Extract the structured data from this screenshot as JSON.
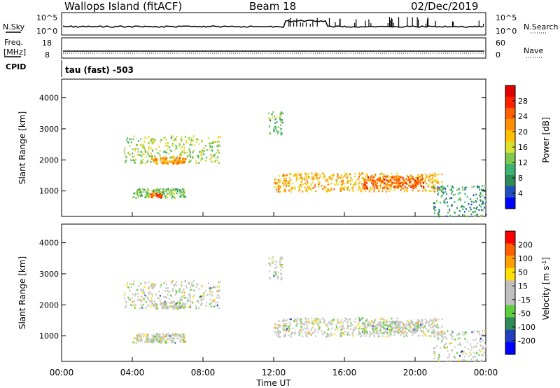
{
  "header": {
    "title": "Wallops Island (fitACF)",
    "beam": "Beam 18",
    "date": "02/Dec/2019"
  },
  "noise_panel": {
    "left_label": "N.Sky",
    "right_label": "N.Search",
    "left_ticks": [
      "10^5",
      "10^0"
    ],
    "right_ticks": [
      "10^5",
      "10^0"
    ]
  },
  "freq_panel": {
    "left_label_top": "Freq.",
    "left_label_unit": "[MHz]",
    "left_ticks": [
      "18",
      "8"
    ],
    "right_label": "Nave",
    "right_ticks": [
      "60",
      "0"
    ]
  },
  "cpid": {
    "label": "CPID",
    "mode": "tau (fast) -503"
  },
  "colors": {
    "power_scale": [
      "#0000ff",
      "#1f4fbf",
      "#2e8b57",
      "#3cb371",
      "#7ec850",
      "#d8e030",
      "#ffc000",
      "#ff9000",
      "#ff6000",
      "#ff2000",
      "#e00000"
    ],
    "velocity_scale": [
      "#0000ff",
      "#2040c0",
      "#2e8b57",
      "#5fcf3f",
      "#c0c0c0",
      "#c0c0c0",
      "#ffe000",
      "#ffa000",
      "#ff6000",
      "#ff0000"
    ]
  },
  "chart_data": [
    {
      "type": "heatmap",
      "name": "Power",
      "ylabel": "Slant Range [km]",
      "xlim": [
        "00:00",
        "00:00"
      ],
      "ylim": [
        180,
        4600
      ],
      "yticks": [
        "1000",
        "2000",
        "3000",
        "4000"
      ],
      "colorbar": {
        "label": "Power [dB]",
        "ticks": [
          "4",
          "8",
          "12",
          "16",
          "20",
          "24",
          "28"
        ],
        "range": [
          0,
          32
        ]
      },
      "echo_regions": [
        {
          "t_start": "03:30",
          "t_end": "09:00",
          "range_km": [
            1900,
            2800
          ],
          "power_db": 14
        },
        {
          "t_start": "05:00",
          "t_end": "07:00",
          "range_km": [
            1900,
            2100
          ],
          "power_db": 22
        },
        {
          "t_start": "04:00",
          "t_end": "07:00",
          "range_km": [
            800,
            1100
          ],
          "power_db": 12
        },
        {
          "t_start": "05:00",
          "t_end": "05:40",
          "range_km": [
            800,
            950
          ],
          "power_db": 24
        },
        {
          "t_start": "11:40",
          "t_end": "12:30",
          "range_km": [
            2800,
            3600
          ],
          "power_db": 10
        },
        {
          "t_start": "12:00",
          "t_end": "21:30",
          "range_km": [
            1000,
            1600
          ],
          "power_db": 20
        },
        {
          "t_start": "17:00",
          "t_end": "20:30",
          "range_km": [
            1100,
            1500
          ],
          "power_db": 26
        },
        {
          "t_start": "21:00",
          "t_end": "24:00",
          "range_km": [
            200,
            1200
          ],
          "power_db": 8
        }
      ]
    },
    {
      "type": "heatmap",
      "name": "Velocity",
      "ylabel": "Slant Range [km]",
      "xlabel": "Time UT",
      "xticks": [
        "00:00",
        "04:00",
        "08:00",
        "12:00",
        "16:00",
        "20:00",
        "00:00"
      ],
      "ylim": [
        180,
        4600
      ],
      "yticks": [
        "1000",
        "2000",
        "3000",
        "4000"
      ],
      "colorbar": {
        "label": "Velocity [m s^-1]",
        "ticks": [
          "200",
          "100",
          "50",
          "15",
          "-15",
          "-50",
          "-100",
          "-200"
        ]
      }
    }
  ]
}
